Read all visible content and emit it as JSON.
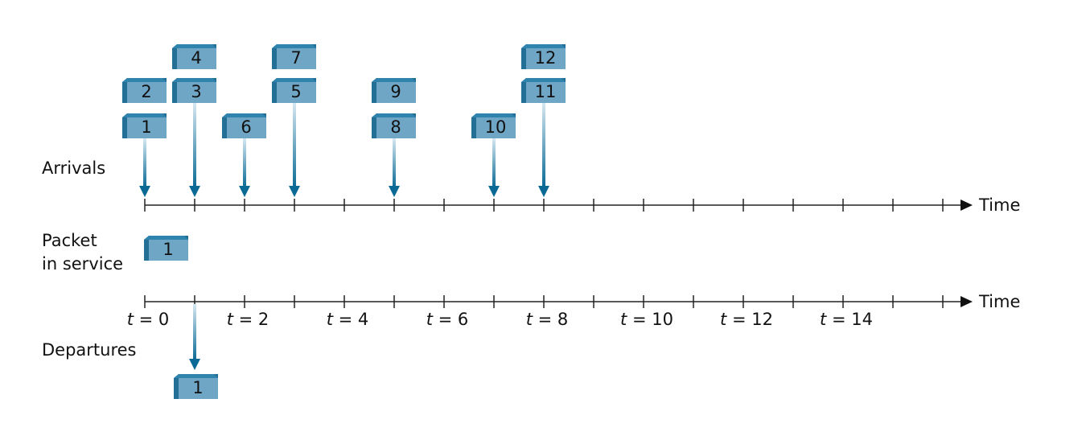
{
  "labels": {
    "arrivals": "Arrivals",
    "service": [
      "Packet",
      "in service"
    ],
    "departures": "Departures"
  },
  "arrival_axis": {
    "label": "Time"
  },
  "service_axis": {
    "label": "Time",
    "ticks": [
      "t = 0",
      "t = 2",
      "t = 4",
      "t = 6",
      "t = 8",
      "t = 10",
      "t = 12",
      "t = 14"
    ]
  },
  "arrivals": [
    {
      "packets": [
        "1",
        "2"
      ]
    },
    {
      "packets": [
        "3",
        "4"
      ]
    },
    {
      "packets": [
        "6"
      ]
    },
    {
      "packets": [
        "5",
        "7"
      ]
    },
    {
      "packets": [
        "8",
        "9"
      ]
    },
    {
      "packets": [
        "10"
      ]
    },
    {
      "packets": [
        "11",
        "12"
      ]
    }
  ],
  "in_service": "1",
  "departures": [
    "1"
  ]
}
